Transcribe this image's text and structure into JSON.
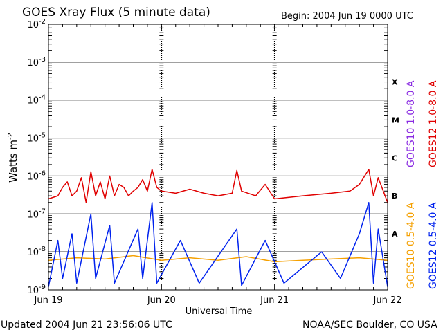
{
  "chart_data": {
    "type": "line",
    "title": "GOES Xray Flux (5 minute data)",
    "begin_label": "Begin:  2004 Jun 19 0000 UTC",
    "xlabel": "Universal Time",
    "ylabel": "Watts m",
    "ylabel_exponent": "-2",
    "ylabel_full": "Watts m^-2",
    "y_scale": "log",
    "ylim": [
      1e-09,
      0.01
    ],
    "y_ticks": [
      {
        "base": "10",
        "exp": "-2",
        "value": 0.01
      },
      {
        "base": "10",
        "exp": "-3",
        "value": 0.001
      },
      {
        "base": "10",
        "exp": "-4",
        "value": 0.0001
      },
      {
        "base": "10",
        "exp": "-5",
        "value": 1e-05
      },
      {
        "base": "10",
        "exp": "-6",
        "value": 1e-06
      },
      {
        "base": "10",
        "exp": "-7",
        "value": 1e-07
      },
      {
        "base": "10",
        "exp": "-8",
        "value": 1e-08
      },
      {
        "base": "10",
        "exp": "-9",
        "value": 1e-09
      }
    ],
    "xlim": [
      "2004-06-19 00:00",
      "2004-06-22 00:00"
    ],
    "x_ticks": [
      {
        "label": "Jun 19",
        "day": 0
      },
      {
        "label": "Jun 20",
        "day": 1
      },
      {
        "label": "Jun 21",
        "day": 2
      },
      {
        "label": "Jun 22",
        "day": 3
      }
    ],
    "flare_classes": [
      {
        "label": "X",
        "value": 0.0003
      },
      {
        "label": "M",
        "value": 3e-05
      },
      {
        "label": "C",
        "value": 3e-06
      },
      {
        "label": "B",
        "value": 3e-07
      },
      {
        "label": "A",
        "value": 3e-08
      }
    ],
    "legend_placement": "right",
    "grid": true,
    "series": [
      {
        "name": "GOES10 1.0-8.0 A",
        "color": "#8a2be2",
        "points": []
      },
      {
        "name": "GOES12 1.0-8.0 A",
        "color": "#e00000",
        "points": [
          {
            "x": "06-19 00:00",
            "y": 2.5e-07
          },
          {
            "x": "06-19 02:00",
            "y": 3e-07
          },
          {
            "x": "06-19 03:00",
            "y": 5e-07
          },
          {
            "x": "06-19 04:00",
            "y": 7e-07
          },
          {
            "x": "06-19 05:00",
            "y": 3e-07
          },
          {
            "x": "06-19 06:00",
            "y": 4e-07
          },
          {
            "x": "06-19 07:00",
            "y": 9e-07
          },
          {
            "x": "06-19 08:00",
            "y": 2e-07
          },
          {
            "x": "06-19 09:00",
            "y": 1.3e-06
          },
          {
            "x": "06-19 10:00",
            "y": 3e-07
          },
          {
            "x": "06-19 11:00",
            "y": 7e-07
          },
          {
            "x": "06-19 12:00",
            "y": 2.5e-07
          },
          {
            "x": "06-19 13:00",
            "y": 1e-06
          },
          {
            "x": "06-19 14:00",
            "y": 3e-07
          },
          {
            "x": "06-19 15:00",
            "y": 6e-07
          },
          {
            "x": "06-19 16:00",
            "y": 5e-07
          },
          {
            "x": "06-19 17:00",
            "y": 3e-07
          },
          {
            "x": "06-19 18:00",
            "y": 4e-07
          },
          {
            "x": "06-19 19:00",
            "y": 5e-07
          },
          {
            "x": "06-19 20:00",
            "y": 8e-07
          },
          {
            "x": "06-19 21:00",
            "y": 4e-07
          },
          {
            "x": "06-19 22:00",
            "y": 1.5e-06
          },
          {
            "x": "06-19 23:00",
            "y": 5e-07
          },
          {
            "x": "06-20 00:00",
            "y": 4e-07
          },
          {
            "x": "06-20 03:00",
            "y": 3.5e-07
          },
          {
            "x": "06-20 06:00",
            "y": 4.5e-07
          },
          {
            "x": "06-20 09:00",
            "y": 3.5e-07
          },
          {
            "x": "06-20 12:00",
            "y": 3e-07
          },
          {
            "x": "06-20 15:00",
            "y": 3.5e-07
          },
          {
            "x": "06-20 16:00",
            "y": 1.4e-06
          },
          {
            "x": "06-20 17:00",
            "y": 4e-07
          },
          {
            "x": "06-20 20:00",
            "y": 3e-07
          },
          {
            "x": "06-20 22:00",
            "y": 6e-07
          },
          {
            "x": "06-21 00:00",
            "y": 2.5e-07
          },
          {
            "x": "06-21 06:00",
            "y": 3e-07
          },
          {
            "x": "06-21 12:00",
            "y": 3.5e-07
          },
          {
            "x": "06-21 16:00",
            "y": 4e-07
          },
          {
            "x": "06-21 18:00",
            "y": 6e-07
          },
          {
            "x": "06-21 20:00",
            "y": 1.5e-06
          },
          {
            "x": "06-21 21:00",
            "y": 3e-07
          },
          {
            "x": "06-21 22:00",
            "y": 9e-07
          },
          {
            "x": "06-22 00:00",
            "y": 2e-07
          }
        ]
      },
      {
        "name": "GOES10 0.5-4.0 A",
        "color": "#f5a000",
        "points": [
          {
            "x": "06-19 00:00",
            "y": 6e-09
          },
          {
            "x": "06-19 06:00",
            "y": 7e-09
          },
          {
            "x": "06-19 12:00",
            "y": 6.5e-09
          },
          {
            "x": "06-19 18:00",
            "y": 8e-09
          },
          {
            "x": "06-20 00:00",
            "y": 6e-09
          },
          {
            "x": "06-20 06:00",
            "y": 7e-09
          },
          {
            "x": "06-20 12:00",
            "y": 6e-09
          },
          {
            "x": "06-20 18:00",
            "y": 7.5e-09
          },
          {
            "x": "06-21 00:00",
            "y": 5.5e-09
          },
          {
            "x": "06-21 06:00",
            "y": 6e-09
          },
          {
            "x": "06-21 12:00",
            "y": 6.5e-09
          },
          {
            "x": "06-21 18:00",
            "y": 7e-09
          },
          {
            "x": "06-22 00:00",
            "y": 6e-09
          }
        ]
      },
      {
        "name": "GOES12 0.5-4.0 A",
        "color": "#0022ee",
        "points": [
          {
            "x": "06-19 00:00",
            "y": 1.2e-09
          },
          {
            "x": "06-19 02:00",
            "y": 2e-08
          },
          {
            "x": "06-19 03:00",
            "y": 2e-09
          },
          {
            "x": "06-19 05:00",
            "y": 3e-08
          },
          {
            "x": "06-19 06:00",
            "y": 1.5e-09
          },
          {
            "x": "06-19 09:00",
            "y": 1e-07
          },
          {
            "x": "06-19 10:00",
            "y": 2e-09
          },
          {
            "x": "06-19 13:00",
            "y": 5e-08
          },
          {
            "x": "06-19 14:00",
            "y": 1.5e-09
          },
          {
            "x": "06-19 19:00",
            "y": 4e-08
          },
          {
            "x": "06-19 20:00",
            "y": 2e-09
          },
          {
            "x": "06-19 22:00",
            "y": 2e-07
          },
          {
            "x": "06-19 23:00",
            "y": 1.5e-09
          },
          {
            "x": "06-20 04:00",
            "y": 2e-08
          },
          {
            "x": "06-20 08:00",
            "y": 1.5e-09
          },
          {
            "x": "06-20 16:00",
            "y": 4e-08
          },
          {
            "x": "06-20 17:00",
            "y": 1.3e-09
          },
          {
            "x": "06-20 22:00",
            "y": 2e-08
          },
          {
            "x": "06-21 02:00",
            "y": 1.5e-09
          },
          {
            "x": "06-21 10:00",
            "y": 1e-08
          },
          {
            "x": "06-21 14:00",
            "y": 2e-09
          },
          {
            "x": "06-21 18:00",
            "y": 3e-08
          },
          {
            "x": "06-21 20:00",
            "y": 2e-07
          },
          {
            "x": "06-21 21:00",
            "y": 1.5e-09
          },
          {
            "x": "06-21 22:00",
            "y": 4e-08
          },
          {
            "x": "06-22 00:00",
            "y": 1.2e-09
          }
        ]
      }
    ]
  },
  "footer": {
    "updated": "Updated 2004 Jun 21 23:56:06 UTC",
    "credit": "NOAA/SEC Boulder, CO USA"
  }
}
